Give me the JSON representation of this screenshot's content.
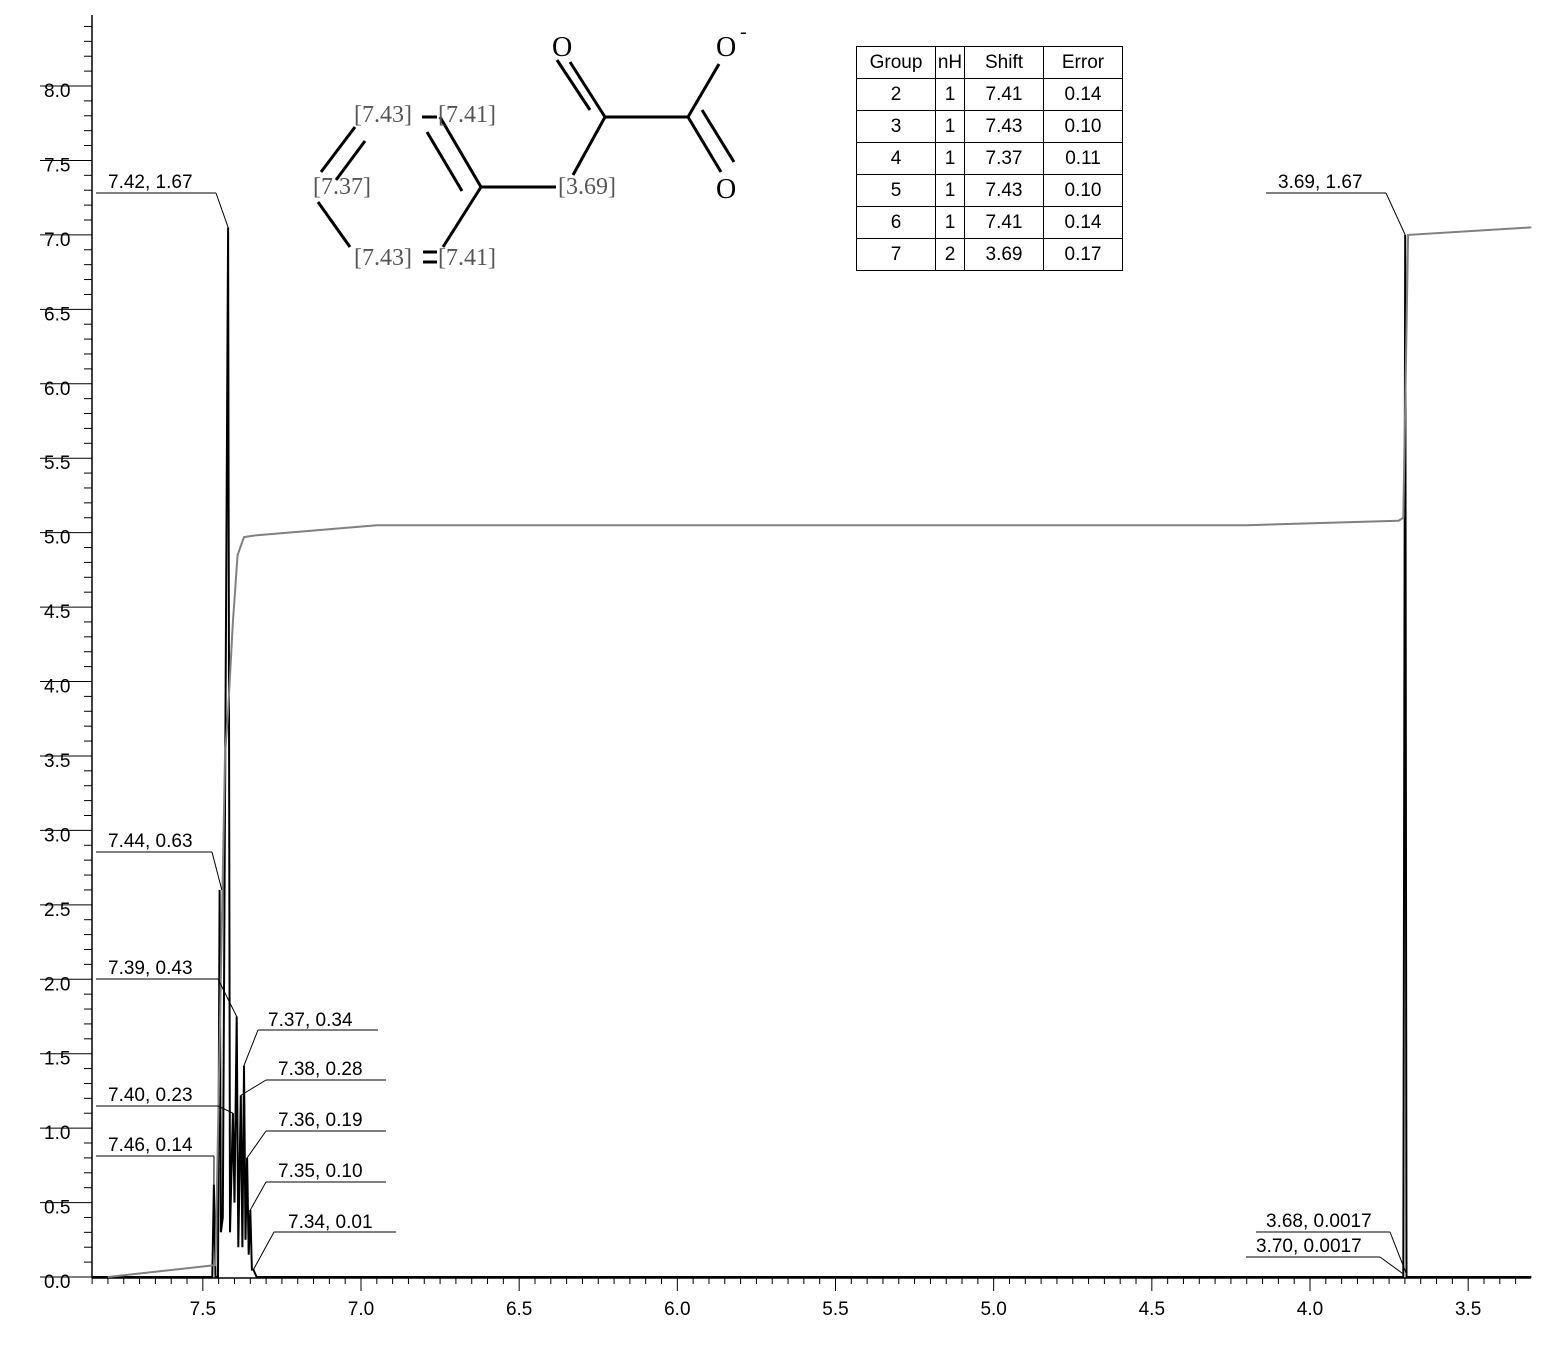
{
  "chart_data": {
    "type": "line",
    "title": "",
    "xlabel": "",
    "ylabel": "",
    "xlim": [
      7.85,
      3.3
    ],
    "ylim": [
      0,
      8.4
    ],
    "x_reversed": true,
    "x_ticks": [
      "7.5",
      "7.0",
      "6.5",
      "6.0",
      "5.5",
      "5.0",
      "4.5",
      "4.0",
      "3.5"
    ],
    "y_ticks": [
      "0.0",
      "0.5",
      "1.0",
      "1.5",
      "2.0",
      "2.5",
      "3.0",
      "3.5",
      "4.0",
      "4.5",
      "5.0",
      "5.5",
      "6.0",
      "6.5",
      "7.0",
      "7.5",
      "8.0"
    ],
    "series": [
      {
        "role": "spectrum",
        "color": "#000000",
        "points": [
          [
            7.85,
            0.0
          ],
          [
            7.47,
            0.0
          ],
          [
            7.465,
            0.62
          ],
          [
            7.46,
            0.0
          ],
          [
            7.452,
            0.0
          ],
          [
            7.447,
            2.6
          ],
          [
            7.443,
            0.3
          ],
          [
            7.437,
            0.4
          ],
          [
            7.42,
            7.05
          ],
          [
            7.414,
            0.3
          ],
          [
            7.405,
            1.1
          ],
          [
            7.4,
            0.5
          ],
          [
            7.393,
            1.75
          ],
          [
            7.388,
            0.2
          ],
          [
            7.38,
            1.22
          ],
          [
            7.375,
            0.2
          ],
          [
            7.37,
            1.42
          ],
          [
            7.365,
            0.25
          ],
          [
            7.36,
            0.8
          ],
          [
            7.355,
            0.15
          ],
          [
            7.35,
            0.45
          ],
          [
            7.345,
            0.05
          ],
          [
            7.34,
            0.05
          ],
          [
            7.33,
            0.0
          ],
          [
            3.712,
            0.0
          ],
          [
            3.705,
            0.0
          ],
          [
            3.699,
            7.0
          ],
          [
            3.695,
            0.0
          ],
          [
            3.3,
            0.0
          ]
        ]
      },
      {
        "role": "integral",
        "color": "#808080",
        "points": [
          [
            7.8,
            0.0
          ],
          [
            7.46,
            0.08
          ],
          [
            7.43,
            3.5
          ],
          [
            7.42,
            3.8
          ],
          [
            7.405,
            4.4
          ],
          [
            7.39,
            4.85
          ],
          [
            7.37,
            4.97
          ],
          [
            7.34,
            4.98
          ],
          [
            6.95,
            5.05
          ],
          [
            4.2,
            5.05
          ],
          [
            3.72,
            5.08
          ],
          [
            3.705,
            5.1
          ],
          [
            3.69,
            7.0
          ],
          [
            3.3,
            7.05
          ]
        ]
      }
    ],
    "peak_labels": [
      {
        "text": "7.42, 1.67",
        "x": 7.42,
        "y": 7.05
      },
      {
        "text": "7.44, 0.63",
        "x": 7.44,
        "y": 2.6
      },
      {
        "text": "7.39, 0.43",
        "x": 7.393,
        "y": 1.75
      },
      {
        "text": "7.37, 0.34",
        "x": 7.37,
        "y": 1.42
      },
      {
        "text": "7.38, 0.28",
        "x": 7.38,
        "y": 1.22
      },
      {
        "text": "7.40, 0.23",
        "x": 7.405,
        "y": 1.1
      },
      {
        "text": "7.36, 0.19",
        "x": 7.36,
        "y": 0.8
      },
      {
        "text": "7.46, 0.14",
        "x": 7.465,
        "y": 0.62
      },
      {
        "text": "7.35, 0.10",
        "x": 7.35,
        "y": 0.45
      },
      {
        "text": "7.34, 0.01",
        "x": 7.34,
        "y": 0.05
      },
      {
        "text": "3.69, 1.67",
        "x": 3.699,
        "y": 7.0
      },
      {
        "text": "3.68, 0.0017",
        "x": 3.695,
        "y": 0.02
      },
      {
        "text": "3.70, 0.0017",
        "x": 3.705,
        "y": 0.02
      }
    ]
  },
  "molecule": {
    "shift_labels": [
      "[7.43]",
      "[7.41]",
      "[7.37]",
      "[3.69]",
      "[7.43]",
      "[7.41]"
    ],
    "atoms": [
      "O",
      "O",
      "O"
    ],
    "charge": "-"
  },
  "table": {
    "headers": [
      "Group",
      "nH",
      "Shift",
      "Error"
    ],
    "rows": [
      [
        "2",
        "1",
        "7.41",
        "0.14"
      ],
      [
        "3",
        "1",
        "7.43",
        "0.10"
      ],
      [
        "4",
        "1",
        "7.37",
        "0.11"
      ],
      [
        "5",
        "1",
        "7.43",
        "0.10"
      ],
      [
        "6",
        "1",
        "7.41",
        "0.14"
      ],
      [
        "7",
        "2",
        "3.69",
        "0.17"
      ]
    ]
  }
}
